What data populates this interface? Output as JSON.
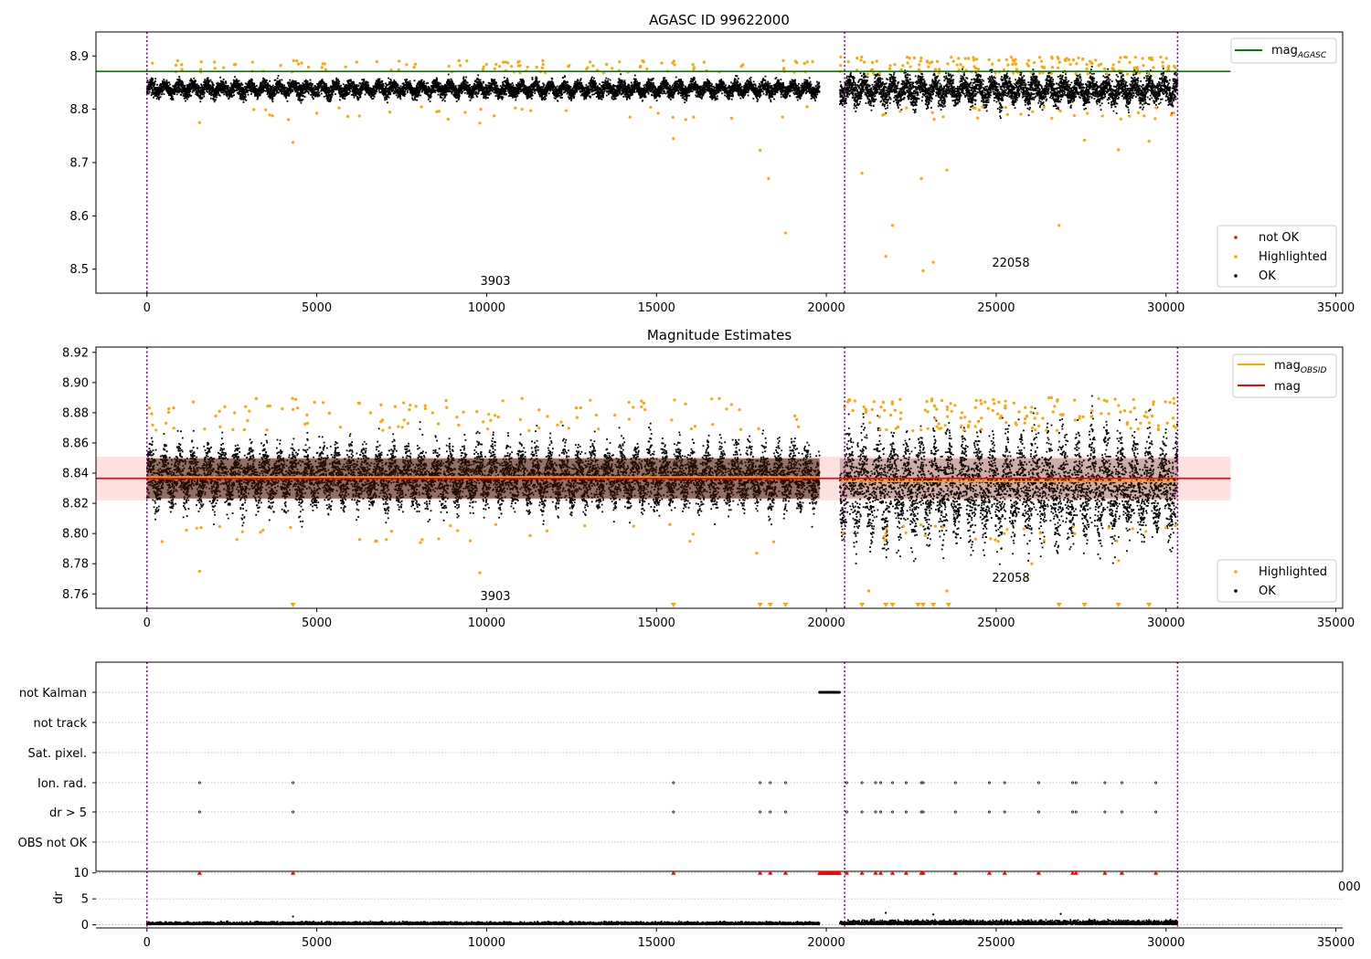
{
  "chart_data": [
    {
      "type": "scatter",
      "title": "AGASC ID 99622000",
      "xlim": [
        -1500,
        35200
      ],
      "ylim": [
        8.455,
        8.945
      ],
      "xticks": [
        0,
        5000,
        10000,
        15000,
        20000,
        25000,
        30000,
        35000
      ],
      "yticks": [
        8.5,
        8.6,
        8.7,
        8.8,
        8.9
      ],
      "ytick_labels": [
        "8.5",
        "8.6",
        "8.7",
        "8.8",
        "8.9"
      ],
      "grid": false,
      "obsid_boundaries": [
        0,
        20540,
        30340
      ],
      "obsid_labels": [
        {
          "text": "3903",
          "x": 10230,
          "y": 8.472
        },
        {
          "text": "22058",
          "x": 25380,
          "y": 8.508
        }
      ],
      "hlines": [
        {
          "name": "mag_AGASC",
          "y": 8.871,
          "x": [
            -1500,
            31900
          ],
          "color": "#008000"
        }
      ],
      "obs_segments": [
        {
          "x_start": 0,
          "x_end": 19800,
          "center": 8.838,
          "band_low": 8.817,
          "band_high": 8.858
        },
        {
          "x_start": 20400,
          "x_end": 30340,
          "center": 8.836,
          "band_low": 8.81,
          "band_high": 8.882
        }
      ],
      "highlighted_points": [
        {
          "x": 1550,
          "y": 8.775
        },
        {
          "x": 4300,
          "y": 8.738
        },
        {
          "x": 9800,
          "y": 8.774
        },
        {
          "x": 15500,
          "y": 8.745
        },
        {
          "x": 18050,
          "y": 8.723
        },
        {
          "x": 18300,
          "y": 8.67
        },
        {
          "x": 18800,
          "y": 8.568
        },
        {
          "x": 21050,
          "y": 8.68
        },
        {
          "x": 21750,
          "y": 8.524
        },
        {
          "x": 21950,
          "y": 8.582
        },
        {
          "x": 22800,
          "y": 8.67
        },
        {
          "x": 22850,
          "y": 8.497
        },
        {
          "x": 23150,
          "y": 8.513
        },
        {
          "x": 23550,
          "y": 8.686
        },
        {
          "x": 26850,
          "y": 8.582
        },
        {
          "x": 27600,
          "y": 8.742
        },
        {
          "x": 28600,
          "y": 8.724
        },
        {
          "x": 29500,
          "y": 8.74
        }
      ],
      "legends": [
        {
          "position": "upper-right",
          "entries": [
            {
              "label": "mag",
              "sub": "AGASC",
              "marker": "line",
              "color": "#008000"
            }
          ]
        },
        {
          "position": "lower-right",
          "entries": [
            {
              "label": "not OK",
              "marker": "dot",
              "color": "#ff0000"
            },
            {
              "label": "Highlighted",
              "marker": "dot",
              "color": "#ffa500"
            },
            {
              "label": "OK",
              "marker": "dot",
              "color": "#000000"
            }
          ]
        }
      ]
    },
    {
      "type": "scatter",
      "title": "Magnitude Estimates",
      "xlim": [
        -1500,
        35200
      ],
      "ylim": [
        8.7505,
        8.9235
      ],
      "xticks": [
        0,
        5000,
        10000,
        15000,
        20000,
        25000,
        30000,
        35000
      ],
      "yticks": [
        8.76,
        8.78,
        8.8,
        8.82,
        8.84,
        8.86,
        8.88,
        8.9,
        8.92
      ],
      "ytick_labels": [
        "8.76",
        "8.78",
        "8.80",
        "8.82",
        "8.84",
        "8.86",
        "8.88",
        "8.90",
        "8.92"
      ],
      "grid": false,
      "obsid_boundaries": [
        0,
        20540,
        30340
      ],
      "obsid_labels": [
        {
          "text": "3903",
          "x": 10230,
          "y": 8.7555
        },
        {
          "text": "22058",
          "x": 25380,
          "y": 8.7695
        }
      ],
      "mag_line": {
        "y": 8.8365,
        "x": [
          -1500,
          31900
        ],
        "band": [
          8.822,
          8.851
        ],
        "color": "#ff0000"
      },
      "obsid_mags": [
        {
          "y": 8.8375,
          "x": [
            0,
            19800
          ]
        },
        {
          "y": 8.8345,
          "x": [
            20400,
            30340
          ]
        }
      ],
      "obs_segments": [
        {
          "x_start": 0,
          "x_end": 19800,
          "center": 8.8375,
          "band_low": 8.814,
          "band_high": 8.866
        },
        {
          "x_start": 20400,
          "x_end": 30340,
          "center": 8.831,
          "band_low": 8.797,
          "band_high": 8.884
        }
      ],
      "highlighted_points": [
        {
          "x": 1550,
          "y": 8.775
        },
        {
          "x": 9800,
          "y": 8.774
        },
        {
          "x": 17950,
          "y": 8.787
        },
        {
          "x": 8050,
          "y": 8.794
        },
        {
          "x": 7050,
          "y": 8.796
        },
        {
          "x": 28600,
          "y": 8.782
        },
        {
          "x": 25900,
          "y": 8.771
        },
        {
          "x": 26050,
          "y": 8.78
        },
        {
          "x": 21250,
          "y": 8.762
        },
        {
          "x": 23550,
          "y": 8.762
        }
      ],
      "off_scale_markers_x": [
        4300,
        15500,
        18050,
        18350,
        18800,
        21050,
        21750,
        21950,
        22700,
        22850,
        23150,
        23600,
        26850,
        27600,
        28600,
        29500
      ],
      "legends": [
        {
          "position": "upper-right",
          "entries": [
            {
              "label": "mag",
              "sub": "OBSID",
              "marker": "line",
              "color": "#ffa500"
            },
            {
              "label": "mag",
              "marker": "line",
              "color": "#ff0000"
            }
          ]
        },
        {
          "position": "lower-right",
          "entries": [
            {
              "label": "Highlighted",
              "marker": "dot",
              "color": "#ffa500"
            },
            {
              "label": "OK",
              "marker": "dot",
              "color": "#000000"
            }
          ]
        }
      ]
    },
    {
      "type": "scatter",
      "title": "",
      "xlim": [
        -1500,
        35200
      ],
      "categories": [
        "not Kalman",
        "not track",
        "Sat. pixel.",
        "Ion. rad.",
        "dr > 5",
        "OBS not OK"
      ],
      "grid": "horizontal dotted",
      "obsid_boundaries": [
        0,
        20540,
        30340
      ],
      "flag_points": {
        "not Kalman": {
          "ranges": [
            [
              19800,
              20400
            ]
          ],
          "points": []
        },
        "not track": {
          "ranges": [],
          "points": []
        },
        "Sat. pixel.": {
          "ranges": [],
          "points": []
        },
        "Ion. rad.": {
          "ranges": [],
          "points": [
            1550,
            4300,
            15500,
            18050,
            18350,
            18800,
            20600,
            21050,
            21450,
            21600,
            21950,
            22350,
            22800,
            22850,
            23800,
            24800,
            25250,
            26250,
            27250,
            27350,
            28200,
            28700,
            29700
          ]
        },
        "dr > 5": {
          "ranges": [],
          "points": [
            1550,
            4300,
            15500,
            18050,
            18350,
            18800,
            20600,
            21050,
            21450,
            21600,
            21950,
            22350,
            22800,
            22850,
            23800,
            24800,
            25250,
            26250,
            27250,
            27350,
            28200,
            28700,
            29700
          ]
        },
        "OBS not OK": {
          "ranges": [],
          "points": []
        }
      }
    },
    {
      "type": "scatter",
      "ylabel": "dr",
      "xlim": [
        -1500,
        35200
      ],
      "ylim": [
        -0.6,
        10.3
      ],
      "xticks": [
        0,
        5000,
        10000,
        15000,
        20000,
        25000,
        30000,
        35000
      ],
      "yticks": [
        0,
        5,
        10
      ],
      "ytick_labels": [
        "0",
        "5",
        "10"
      ],
      "grid": "horizontal dotted",
      "obsid_boundaries": [
        0,
        20540,
        30340
      ],
      "clipped_points_x": [
        1550,
        4300,
        15500,
        18050,
        18350,
        18800,
        20600,
        21050,
        21450,
        21600,
        21950,
        22350,
        22800,
        22850,
        23800,
        24800,
        25250,
        26250,
        27250,
        27350,
        28200,
        28700,
        29700
      ],
      "clipped_range": [
        19800,
        20400
      ],
      "outliers": [
        {
          "x": 21750,
          "y": 2.3
        },
        {
          "x": 23150,
          "y": 2.0
        },
        {
          "x": 26900,
          "y": 2.1
        },
        {
          "x": 4300,
          "y": 1.6
        }
      ],
      "stray_tick_text": "000"
    }
  ]
}
